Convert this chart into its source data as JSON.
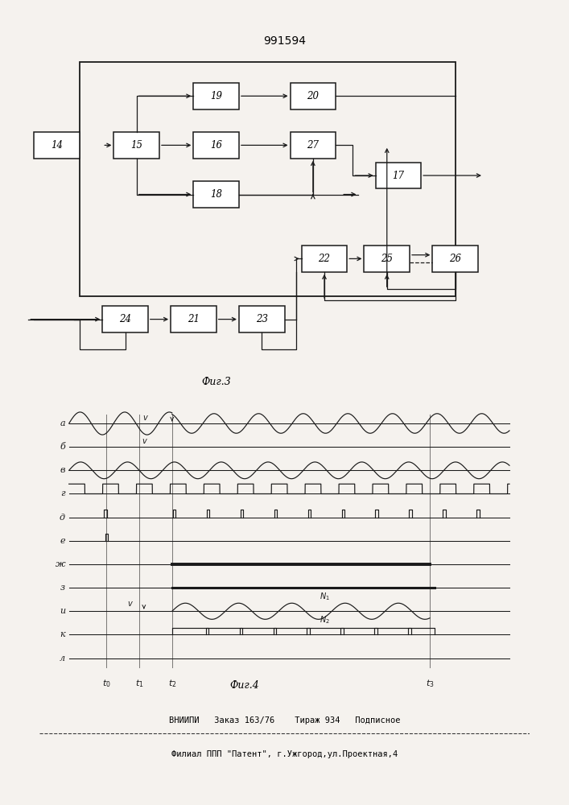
{
  "title": "991594",
  "fig3_label": "Фиг.3",
  "fig4_label": "Фиг.4",
  "footer_line1": "ВНИИПИ   Заказ 163/76    Тираж 934   Подписное",
  "footer_line2": "Филиал ППП \"Патент\", г.Ужгород,ул.Проектная,4",
  "bg_color": "#f5f2ee",
  "lc": "#1a1a1a",
  "row_labels": [
    "а",
    "б",
    "в",
    "г",
    "д",
    "е",
    "ж",
    "з",
    "и",
    "к",
    "л"
  ]
}
